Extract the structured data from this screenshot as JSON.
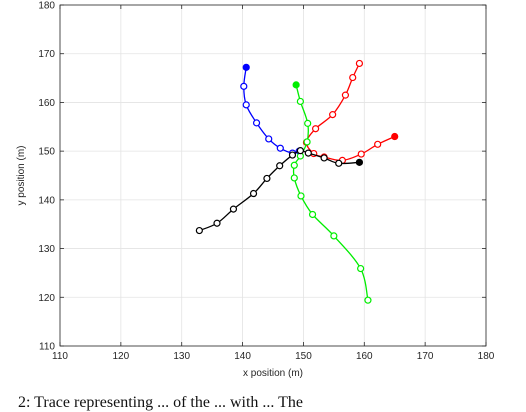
{
  "caption": "2: Trace representing ... of the ... with ... The",
  "chart_data": {
    "type": "line",
    "title": "",
    "xlabel": "x position (m)",
    "ylabel": "y position (m)",
    "xlim": [
      110,
      180
    ],
    "ylim": [
      110,
      180
    ],
    "xticks": [
      110,
      120,
      130,
      140,
      150,
      160,
      170,
      180
    ],
    "yticks": [
      110,
      120,
      130,
      140,
      150,
      160,
      170,
      180
    ],
    "grid": true,
    "legend": "none",
    "series": [
      {
        "color": "#0000ff",
        "start_marker": "filled-circle",
        "x": [
          140.6,
          140.2,
          140.6,
          142.3,
          144.3,
          146.2,
          148.2,
          149.3
        ],
        "y": [
          167.2,
          163.3,
          159.5,
          155.8,
          152.5,
          150.6,
          149.6,
          150.0
        ]
      },
      {
        "color": "#ff0000",
        "start_marker": "filled-circle",
        "x": [
          165.0,
          162.2,
          159.5,
          156.4,
          153.4,
          151.7,
          150.5,
          152.0,
          154.8,
          156.9,
          158.1,
          159.2
        ],
        "y": [
          153.0,
          151.4,
          149.4,
          148.1,
          148.8,
          149.5,
          151.8,
          154.6,
          157.5,
          161.5,
          165.1,
          168.0
        ]
      },
      {
        "color": "#00ee00",
        "start_marker": "filled-circle",
        "x": [
          148.8,
          149.5,
          150.7,
          150.6,
          149.5,
          148.5,
          148.5,
          149.6,
          151.5,
          155.0,
          159.4,
          160.6
        ],
        "y": [
          163.6,
          160.2,
          155.7,
          151.9,
          149.0,
          147.1,
          144.5,
          140.8,
          137.0,
          132.6,
          125.9,
          119.4
        ]
      },
      {
        "color": "#000000",
        "start_marker": "filled-circle",
        "x": [
          159.2,
          155.8,
          153.4,
          150.8,
          149.5,
          148.2,
          146.1,
          144.0,
          141.8,
          138.5,
          135.8,
          132.9
        ],
        "y": [
          147.7,
          147.5,
          148.6,
          149.6,
          150.1,
          149.2,
          147.0,
          144.4,
          141.3,
          138.1,
          135.2,
          133.7
        ]
      }
    ]
  }
}
